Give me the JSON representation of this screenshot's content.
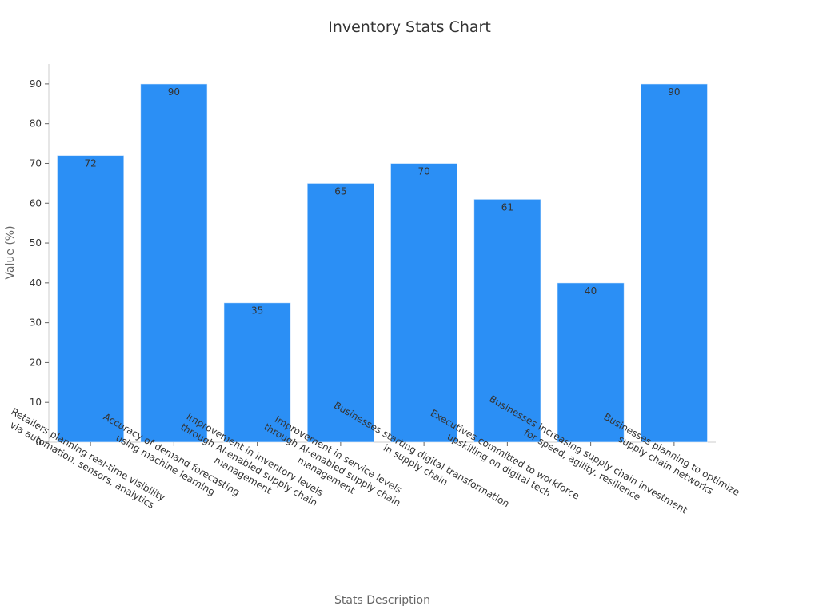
{
  "chart_data": {
    "type": "bar",
    "title": "Inventory Stats Chart",
    "xlabel": "Stats Description",
    "ylabel": "Value (%)",
    "ylim": [
      0,
      95
    ],
    "yticks": [
      "0",
      "10",
      "20",
      "30",
      "40",
      "50",
      "60",
      "70",
      "80",
      "90"
    ],
    "grid": false,
    "bar_color": "#2b8ff5",
    "categories": [
      [
        "Retailers planning real-time visibility",
        "via automation, sensors, analytics"
      ],
      [
        "Accuracy of demand forecasting",
        "using machine learning"
      ],
      [
        "Improvement in inventory levels",
        "through AI-enabled supply chain",
        "management"
      ],
      [
        "Improvement in service levels",
        "through AI-enabled supply chain",
        "management"
      ],
      [
        "Businesses starting digital transformation",
        "in supply chain"
      ],
      [
        "Executives committed to workforce",
        "upskilling on digital tech"
      ],
      [
        "Businesses increasing supply chain investment",
        "for speed, agility, resilience"
      ],
      [
        "Businesses planning to optimize",
        "supply chain networks"
      ]
    ],
    "values": [
      72,
      90,
      35,
      65,
      70,
      61,
      40,
      90
    ],
    "data_labels": [
      "72",
      "90",
      "35",
      "65",
      "70",
      "61",
      "40",
      "90"
    ]
  }
}
